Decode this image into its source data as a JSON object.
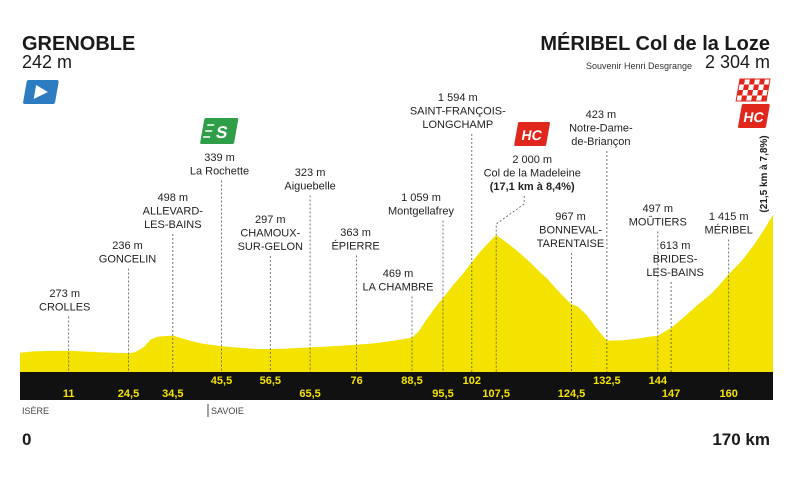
{
  "start": {
    "name": "GRENOBLE",
    "altitude": "242 m"
  },
  "finish": {
    "name": "MÉRIBEL Col de la Loze",
    "subtitle": "Souvenir Henri Desgrange",
    "altitude": "2 304 m",
    "category": "HC",
    "climb": "(21,5 km à 7,8%)"
  },
  "regions": [
    {
      "name": "ISÈRE"
    },
    {
      "name": "SAVOIE"
    }
  ],
  "icons": {
    "start": "start-flag-icon",
    "finish": "checkered-flag-icon",
    "sprint": "sprint-icon",
    "climb": "hc-climb-icon"
  },
  "colors": {
    "profile": "#f4e300",
    "band": "#111111",
    "km_text": "#f4e300",
    "climb_badge": "#e1261c",
    "checker": "#e1261c",
    "sprint_badge": "#2e9e48",
    "start_flag": "#2c7cc2"
  },
  "chart_data": {
    "type": "area",
    "x_unit": "km",
    "y_unit": "m",
    "xlim": [
      0,
      170
    ],
    "x_start_label": "0",
    "x_end_label": "170 km",
    "profile": {
      "km": [
        0,
        3,
        6,
        9,
        11,
        14,
        18,
        21,
        24.5,
        26,
        28,
        29.5,
        31,
        33,
        34.5,
        36,
        38,
        41,
        45.5,
        50,
        53,
        56.5,
        60,
        65.5,
        70,
        76,
        80,
        84,
        88.5,
        90,
        92,
        94,
        95.5,
        98,
        100,
        102,
        104,
        106,
        107.5,
        109,
        111,
        113,
        115,
        117,
        119,
        121,
        123,
        124.5,
        126,
        128,
        130,
        132.5,
        136,
        139,
        142,
        144,
        147,
        150,
        153,
        156,
        158,
        160,
        163,
        166,
        168,
        170
      ],
      "altitude": [
        242,
        262,
        268,
        270,
        273,
        262,
        250,
        244,
        236,
        250,
        330,
        440,
        480,
        492,
        498,
        470,
        430,
        380,
        339,
        315,
        300,
        297,
        305,
        323,
        338,
        363,
        385,
        420,
        469,
        560,
        760,
        940,
        1059,
        1270,
        1420,
        1594,
        1760,
        1900,
        2000,
        1930,
        1830,
        1720,
        1600,
        1470,
        1350,
        1200,
        1060,
        967,
        930,
        800,
        620,
        423,
        430,
        450,
        480,
        497,
        613,
        780,
        960,
        1120,
        1260,
        1415,
        1620,
        1880,
        2080,
        2304
      ]
    },
    "waypoints": [
      {
        "km": 11,
        "km_label": "11",
        "altitude": 273,
        "altitude_label": "273 m",
        "name": [
          "CROLLES"
        ]
      },
      {
        "km": 24.5,
        "km_label": "24,5",
        "altitude": 236,
        "altitude_label": "236 m",
        "name": [
          "GONCELIN"
        ]
      },
      {
        "km": 34.5,
        "km_label": "34,5",
        "altitude": 498,
        "altitude_label": "498 m",
        "name": [
          "ALLEVARD-",
          "LES-BAINS"
        ]
      },
      {
        "km": 45.5,
        "km_label": "45,5",
        "altitude": 339,
        "altitude_label": "339 m",
        "name": [
          "La Rochette"
        ],
        "badge": {
          "text": "S",
          "icon": "sprint-icon"
        }
      },
      {
        "km": 56.5,
        "km_label": "56,5",
        "altitude": 297,
        "altitude_label": "297 m",
        "name": [
          "CHAMOUX-",
          "SUR-GELON"
        ]
      },
      {
        "km": 65.5,
        "km_label": "65,5",
        "altitude": 323,
        "altitude_label": "323 m",
        "name": [
          "Aiguebelle"
        ]
      },
      {
        "km": 76,
        "km_label": "76",
        "altitude": 363,
        "altitude_label": "363 m",
        "name": [
          "ÉPIERRE"
        ]
      },
      {
        "km": 88.5,
        "km_label": "88,5",
        "altitude": 469,
        "altitude_label": "469 m",
        "name": [
          "LA CHAMBRE"
        ]
      },
      {
        "km": 95.5,
        "km_label": "95,5",
        "altitude": 1059,
        "altitude_label": "1 059 m",
        "name": [
          "Montgellafrey"
        ]
      },
      {
        "km": 102,
        "km_label": "102",
        "altitude": 1594,
        "altitude_label": "1 594 m",
        "name": [
          "SAINT-FRANÇOIS-",
          "LONGCHAMP"
        ]
      },
      {
        "km": 107.5,
        "km_label": "107,5",
        "altitude": 2000,
        "altitude_label": "2 000 m",
        "name": [
          "Col de la Madeleine"
        ],
        "climb": "(17,1 km à 8,4%)",
        "badge": {
          "text": "HC",
          "icon": "hc-climb-icon"
        }
      },
      {
        "km": 124.5,
        "km_label": "124,5",
        "altitude": 967,
        "altitude_label": "967 m",
        "name": [
          "BONNEVAL-",
          "TARENTAISE"
        ]
      },
      {
        "km": 132.5,
        "km_label": "132,5",
        "altitude": 423,
        "altitude_label": "423 m",
        "name": [
          "Notre-Dame-",
          "de-Briançon"
        ]
      },
      {
        "km": 144,
        "km_label": "144",
        "altitude": 497,
        "altitude_label": "497 m",
        "name": [
          "MOÛTIERS"
        ]
      },
      {
        "km": 147,
        "km_label": "147",
        "altitude": 613,
        "altitude_label": "613 m",
        "name": [
          "BRIDES-",
          "LES-BAINS"
        ]
      },
      {
        "km": 160,
        "km_label": "160",
        "altitude": 1415,
        "altitude_label": "1 415 m",
        "name": [
          "MÉRIBEL"
        ]
      }
    ]
  }
}
